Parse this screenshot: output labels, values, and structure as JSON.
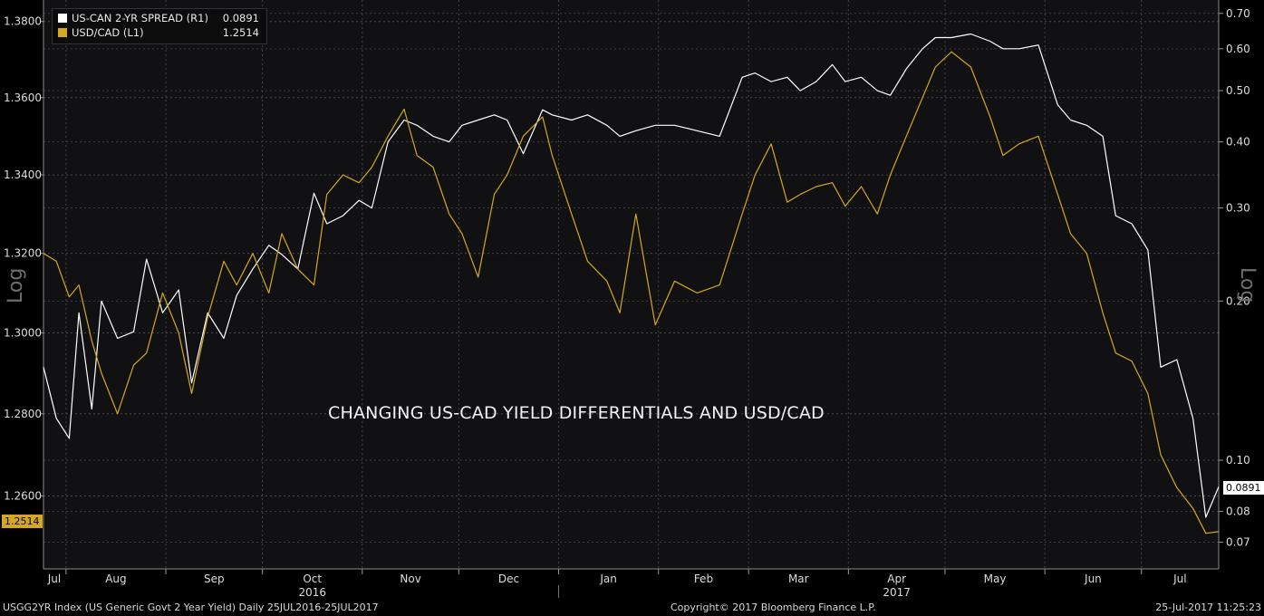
{
  "chart_data": {
    "type": "line",
    "annotation": "CHANGING US-CAD YIELD DIFFERENTIALS AND USD/CAD",
    "scale_label_left": "Log",
    "scale_label_right": "Log",
    "grid": true,
    "legend_position": "top-left",
    "x_months": [
      "Jul",
      "Aug",
      "Sep",
      "Oct",
      "Nov",
      "Dec",
      "Jan",
      "Feb",
      "Mar",
      "Apr",
      "May",
      "Jun",
      "Jul"
    ],
    "x_year_labels": [
      {
        "month": "Oct",
        "year": "2016"
      },
      {
        "month": "Apr",
        "year": "2017"
      }
    ],
    "x_range": [
      "2016-07-25",
      "2017-07-25"
    ],
    "left_axis": {
      "ticks": [
        "1.3800",
        "1.3600",
        "1.3400",
        "1.3200",
        "1.3000",
        "1.2800",
        "1.2600"
      ],
      "ylim": [
        1.2425,
        1.3857
      ],
      "scale": "log"
    },
    "right_axis": {
      "ticks": [
        "0.70",
        "0.60",
        "0.50",
        "0.40",
        "0.30",
        "0.20",
        "0.10",
        "0.08",
        "0.07"
      ],
      "ylim": [
        0.0623,
        0.742
      ],
      "scale": "log"
    },
    "series": [
      {
        "name": "US-CAN 2-YR SPREAD (R1)",
        "axis": "right",
        "color": "#ffffff",
        "last_value": "0.0891",
        "points": [
          [
            "2016-07-25",
            0.15
          ],
          [
            "2016-07-29",
            0.12
          ],
          [
            "2016-08-02",
            0.11
          ],
          [
            "2016-08-05",
            0.19
          ],
          [
            "2016-08-09",
            0.125
          ],
          [
            "2016-08-12",
            0.2
          ],
          [
            "2016-08-17",
            0.17
          ],
          [
            "2016-08-22",
            0.175
          ],
          [
            "2016-08-26",
            0.24
          ],
          [
            "2016-08-31",
            0.19
          ],
          [
            "2016-09-05",
            0.21
          ],
          [
            "2016-09-09",
            0.14
          ],
          [
            "2016-09-14",
            0.19
          ],
          [
            "2016-09-19",
            0.17
          ],
          [
            "2016-09-23",
            0.205
          ],
          [
            "2016-09-28",
            0.23
          ],
          [
            "2016-10-03",
            0.255
          ],
          [
            "2016-10-07",
            0.245
          ],
          [
            "2016-10-12",
            0.23
          ],
          [
            "2016-10-17",
            0.32
          ],
          [
            "2016-10-21",
            0.28
          ],
          [
            "2016-10-26",
            0.29
          ],
          [
            "2016-10-31",
            0.31
          ],
          [
            "2016-11-04",
            0.3
          ],
          [
            "2016-11-09",
            0.4
          ],
          [
            "2016-11-14",
            0.44
          ],
          [
            "2016-11-18",
            0.43
          ],
          [
            "2016-11-23",
            0.41
          ],
          [
            "2016-11-28",
            0.4
          ],
          [
            "2016-12-02",
            0.43
          ],
          [
            "2016-12-07",
            0.44
          ],
          [
            "2016-12-12",
            0.45
          ],
          [
            "2016-12-16",
            0.44
          ],
          [
            "2016-12-21",
            0.38
          ],
          [
            "2016-12-27",
            0.46
          ],
          [
            "2016-12-30",
            0.45
          ],
          [
            "2017-01-05",
            0.44
          ],
          [
            "2017-01-10",
            0.45
          ],
          [
            "2017-01-16",
            0.43
          ],
          [
            "2017-01-20",
            0.41
          ],
          [
            "2017-01-25",
            0.42
          ],
          [
            "2017-01-31",
            0.43
          ],
          [
            "2017-02-06",
            0.43
          ],
          [
            "2017-02-13",
            0.42
          ],
          [
            "2017-02-20",
            0.41
          ],
          [
            "2017-02-27",
            0.53
          ],
          [
            "2017-03-03",
            0.54
          ],
          [
            "2017-03-08",
            0.52
          ],
          [
            "2017-03-13",
            0.53
          ],
          [
            "2017-03-17",
            0.5
          ],
          [
            "2017-03-22",
            0.52
          ],
          [
            "2017-03-27",
            0.56
          ],
          [
            "2017-03-31",
            0.52
          ],
          [
            "2017-04-05",
            0.53
          ],
          [
            "2017-04-10",
            0.5
          ],
          [
            "2017-04-14",
            0.49
          ],
          [
            "2017-04-19",
            0.55
          ],
          [
            "2017-04-24",
            0.6
          ],
          [
            "2017-04-28",
            0.63
          ],
          [
            "2017-05-03",
            0.63
          ],
          [
            "2017-05-09",
            0.64
          ],
          [
            "2017-05-15",
            0.62
          ],
          [
            "2017-05-19",
            0.6
          ],
          [
            "2017-05-24",
            0.6
          ],
          [
            "2017-05-30",
            0.61
          ],
          [
            "2017-06-05",
            0.47
          ],
          [
            "2017-06-09",
            0.44
          ],
          [
            "2017-06-14",
            0.43
          ],
          [
            "2017-06-19",
            0.41
          ],
          [
            "2017-06-23",
            0.29
          ],
          [
            "2017-06-28",
            0.28
          ],
          [
            "2017-07-03",
            0.25
          ],
          [
            "2017-07-07",
            0.15
          ],
          [
            "2017-07-12",
            0.155
          ],
          [
            "2017-07-17",
            0.12
          ],
          [
            "2017-07-21",
            0.078
          ],
          [
            "2017-07-25",
            0.0891
          ]
        ]
      },
      {
        "name": "USD/CAD (L1)",
        "axis": "left",
        "color": "#d4a820",
        "last_value": "1.2514",
        "points": [
          [
            "2016-07-25",
            1.32
          ],
          [
            "2016-07-29",
            1.318
          ],
          [
            "2016-08-02",
            1.309
          ],
          [
            "2016-08-05",
            1.312
          ],
          [
            "2016-08-09",
            1.298
          ],
          [
            "2016-08-12",
            1.29
          ],
          [
            "2016-08-17",
            1.28
          ],
          [
            "2016-08-22",
            1.292
          ],
          [
            "2016-08-26",
            1.295
          ],
          [
            "2016-08-31",
            1.31
          ],
          [
            "2016-09-05",
            1.3
          ],
          [
            "2016-09-09",
            1.285
          ],
          [
            "2016-09-14",
            1.304
          ],
          [
            "2016-09-19",
            1.318
          ],
          [
            "2016-09-23",
            1.312
          ],
          [
            "2016-09-28",
            1.32
          ],
          [
            "2016-10-03",
            1.31
          ],
          [
            "2016-10-07",
            1.325
          ],
          [
            "2016-10-12",
            1.316
          ],
          [
            "2016-10-17",
            1.312
          ],
          [
            "2016-10-21",
            1.335
          ],
          [
            "2016-10-26",
            1.34
          ],
          [
            "2016-10-31",
            1.338
          ],
          [
            "2016-11-04",
            1.342
          ],
          [
            "2016-11-09",
            1.35
          ],
          [
            "2016-11-14",
            1.357
          ],
          [
            "2016-11-18",
            1.345
          ],
          [
            "2016-11-23",
            1.342
          ],
          [
            "2016-11-28",
            1.33
          ],
          [
            "2016-12-02",
            1.325
          ],
          [
            "2016-12-07",
            1.314
          ],
          [
            "2016-12-12",
            1.335
          ],
          [
            "2016-12-16",
            1.34
          ],
          [
            "2016-12-21",
            1.35
          ],
          [
            "2016-12-27",
            1.355
          ],
          [
            "2016-12-30",
            1.345
          ],
          [
            "2017-01-05",
            1.33
          ],
          [
            "2017-01-10",
            1.318
          ],
          [
            "2017-01-16",
            1.313
          ],
          [
            "2017-01-20",
            1.305
          ],
          [
            "2017-01-25",
            1.33
          ],
          [
            "2017-01-31",
            1.302
          ],
          [
            "2017-02-06",
            1.313
          ],
          [
            "2017-02-13",
            1.31
          ],
          [
            "2017-02-20",
            1.312
          ],
          [
            "2017-02-27",
            1.33
          ],
          [
            "2017-03-03",
            1.34
          ],
          [
            "2017-03-08",
            1.348
          ],
          [
            "2017-03-13",
            1.333
          ],
          [
            "2017-03-17",
            1.335
          ],
          [
            "2017-03-22",
            1.337
          ],
          [
            "2017-03-27",
            1.338
          ],
          [
            "2017-03-31",
            1.332
          ],
          [
            "2017-04-05",
            1.337
          ],
          [
            "2017-04-10",
            1.33
          ],
          [
            "2017-04-14",
            1.34
          ],
          [
            "2017-04-19",
            1.35
          ],
          [
            "2017-04-24",
            1.36
          ],
          [
            "2017-04-28",
            1.368
          ],
          [
            "2017-05-03",
            1.372
          ],
          [
            "2017-05-09",
            1.368
          ],
          [
            "2017-05-15",
            1.355
          ],
          [
            "2017-05-19",
            1.345
          ],
          [
            "2017-05-24",
            1.348
          ],
          [
            "2017-05-30",
            1.35
          ],
          [
            "2017-06-05",
            1.335
          ],
          [
            "2017-06-09",
            1.325
          ],
          [
            "2017-06-14",
            1.32
          ],
          [
            "2017-06-19",
            1.305
          ],
          [
            "2017-06-23",
            1.295
          ],
          [
            "2017-06-28",
            1.293
          ],
          [
            "2017-07-03",
            1.285
          ],
          [
            "2017-07-07",
            1.27
          ],
          [
            "2017-07-12",
            1.262
          ],
          [
            "2017-07-17",
            1.257
          ],
          [
            "2017-07-21",
            1.251
          ],
          [
            "2017-07-25",
            1.2514
          ]
        ]
      }
    ]
  },
  "footer": {
    "index_desc": "USGG2YR Index (US Generic Govt 2 Year Yield)  Daily 25JUL2016-25JUL2017",
    "copyright": "Copyright© 2017 Bloomberg Finance L.P.",
    "timestamp": "25-Jul-2017  11:25:23"
  }
}
